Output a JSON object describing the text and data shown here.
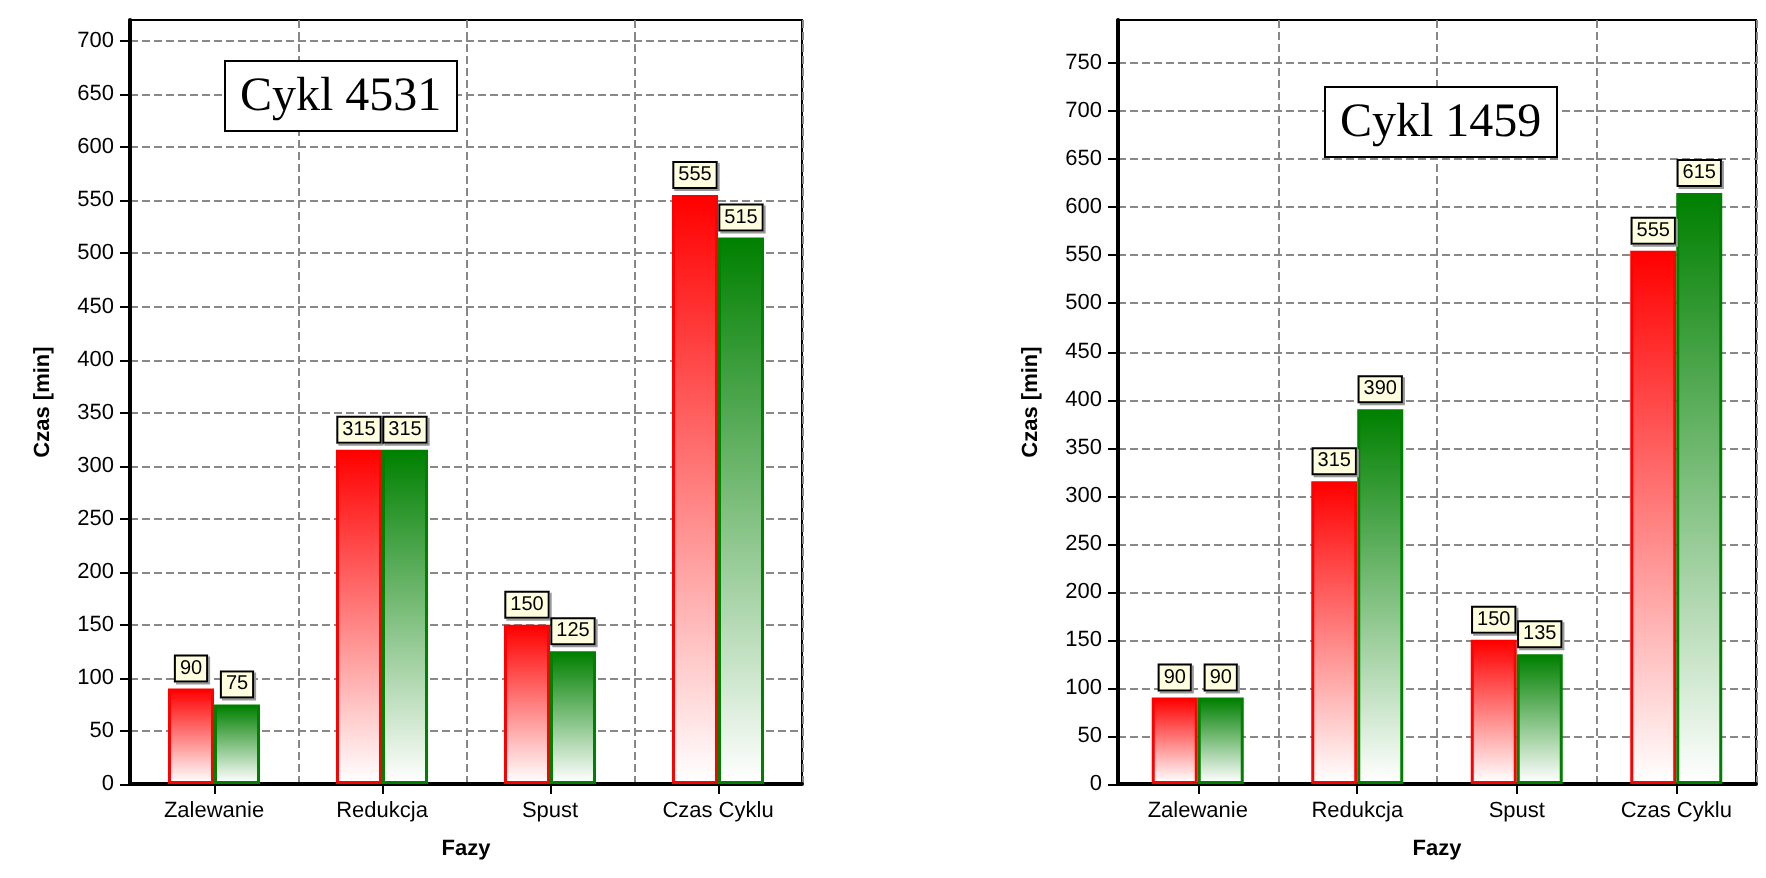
{
  "chart_data": [
    {
      "type": "bar",
      "title": "Cykl 4531",
      "xlabel": "Fazy",
      "ylabel": "Czas [min]",
      "categories": [
        "Zalewanie",
        "Redukcja",
        "Spust",
        "Czas Cyklu"
      ],
      "series": [
        {
          "color": "#ff0000",
          "values": [
            90,
            315,
            150,
            555
          ]
        },
        {
          "color": "#008000",
          "values": [
            75,
            315,
            125,
            515
          ]
        }
      ],
      "ylim": [
        0,
        720
      ],
      "yticks": [
        0,
        50,
        100,
        150,
        200,
        250,
        300,
        350,
        400,
        450,
        500,
        550,
        600,
        650,
        700
      ],
      "grid": true,
      "data_labels": true
    },
    {
      "type": "bar",
      "title": "Cykl 1459",
      "xlabel": "Fazy",
      "ylabel": "Czas [min]",
      "categories": [
        "Zalewanie",
        "Redukcja",
        "Spust",
        "Czas Cyklu"
      ],
      "series": [
        {
          "color": "#ff0000",
          "values": [
            90,
            315,
            150,
            555
          ]
        },
        {
          "color": "#008000",
          "values": [
            90,
            390,
            135,
            615
          ]
        }
      ],
      "ylim": [
        0,
        795
      ],
      "yticks": [
        0,
        50,
        100,
        150,
        200,
        250,
        300,
        350,
        400,
        450,
        500,
        550,
        600,
        650,
        700,
        750
      ],
      "grid": true,
      "data_labels": true
    }
  ]
}
